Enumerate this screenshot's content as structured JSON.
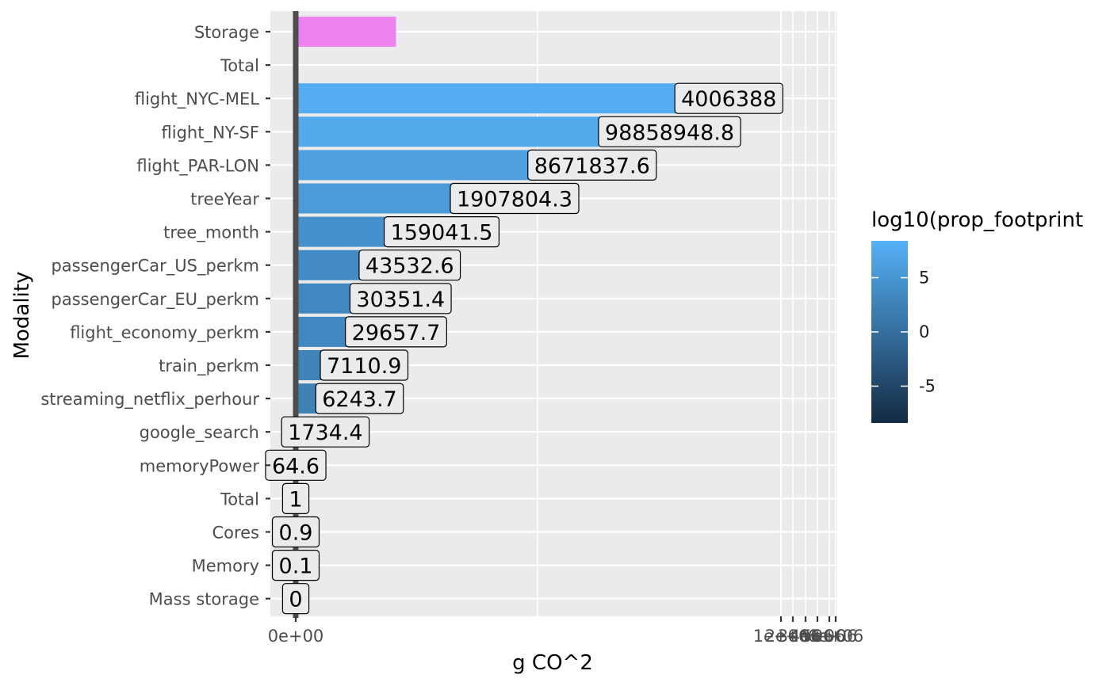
{
  "chart_data": {
    "type": "bar",
    "orientation": "horizontal",
    "xlabel": "g CO^2",
    "ylabel": "Modality",
    "x_ticks": [
      "0e+00",
      "1e+06",
      "2e+06",
      "3e+06",
      "4e+06",
      "5e+06",
      "6e+06"
    ],
    "grid": true,
    "legend": {
      "title": "log10(prop_footprint",
      "placement": "right",
      "ticks": [
        "5",
        "0",
        "-5"
      ],
      "tick_values": [
        5,
        0,
        -5
      ],
      "range": [
        -8.4,
        8.4
      ],
      "color_low": "#132B43",
      "color_high": "#56B1F7"
    },
    "na_color": "#EE82EE",
    "bars": [
      {
        "category": "Storage",
        "value": 2.2,
        "label": "",
        "fill": null
      },
      {
        "category": "Total ",
        "value": 0,
        "label": "",
        "fill": null
      },
      {
        "category": "flight_NYC-MEL",
        "value": 9.5,
        "label": "4006388",
        "fill": 7.9
      },
      {
        "category": "flight_NY-SF",
        "value": 8.2,
        "label": "98858948.8",
        "fill": 7.4
      },
      {
        "category": "flight_PAR-LON",
        "value": 6.5,
        "label": "8671837.6",
        "fill": 6.3
      },
      {
        "category": "treeYear",
        "value": 4.8,
        "label": "1907804.3",
        "fill": 5.6
      },
      {
        "category": "tree_month",
        "value": 3.2,
        "label": "159041.5",
        "fill": 4.3
      },
      {
        "category": "passengerCar_US_perkm",
        "value": 2.5,
        "label": "43532.6",
        "fill": 3.6
      },
      {
        "category": "passengerCar_EU_perkm",
        "value": 2.3,
        "label": "30351.4",
        "fill": 3.3
      },
      {
        "category": "flight_economy_perkm",
        "value": 2.2,
        "label": "29657.7",
        "fill": 3.3
      },
      {
        "category": "train_perkm",
        "value": 1.5,
        "label": "7110.9",
        "fill": 2.6
      },
      {
        "category": "streaming_netflix_perhour",
        "value": 1.4,
        "label": "6243.7",
        "fill": 2.5
      },
      {
        "category": "google_search",
        "value": 0.65,
        "label": "1734.4",
        "fill": 1.3
      },
      {
        "category": "memoryPower",
        "value": 0,
        "label": "64.6",
        "fill": null
      },
      {
        "category": "Total",
        "value": 0,
        "label": "1",
        "fill": null
      },
      {
        "category": "Cores",
        "value": 0,
        "label": "0.9",
        "fill": null
      },
      {
        "category": "Memory",
        "value": 0,
        "label": "0.1",
        "fill": null
      },
      {
        "category": "Mass storage",
        "value": 0,
        "label": "0",
        "fill": null
      }
    ]
  }
}
